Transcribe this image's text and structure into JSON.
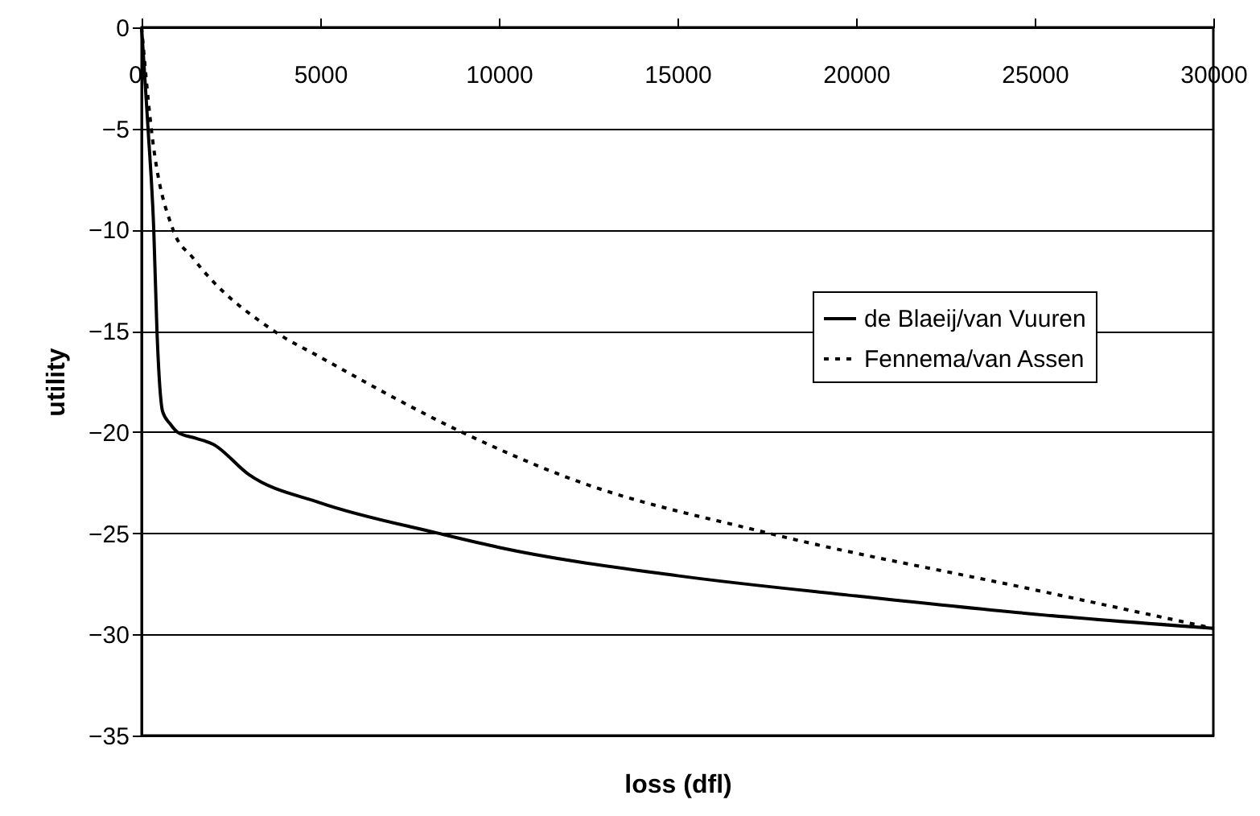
{
  "chart_data": {
    "type": "line",
    "xlabel": "loss (dfl)",
    "ylabel": "utility",
    "xlim": [
      0,
      30000
    ],
    "xticks": [
      0,
      5000,
      10000,
      15000,
      20000,
      25000,
      30000
    ],
    "ylim": [
      -35,
      0
    ],
    "yticks": [
      -35,
      -30,
      -25,
      -20,
      -15,
      -10,
      -5,
      0
    ],
    "grid": "y",
    "legend": "right",
    "marker": "none",
    "series": [
      {
        "name": "de Blaeij/van Vuuren",
        "color": "#000000",
        "line_style": "solid",
        "x": [
          0,
          180,
          340,
          430,
          590,
          800,
          1000,
          1500,
          2000,
          3000,
          5000,
          8300,
          10000,
          15000,
          20000,
          25000,
          30000
        ],
        "values": [
          0,
          -5,
          -10,
          -15,
          -19,
          -19.6,
          -20,
          -20.3,
          -20.6,
          -22.1,
          -23.5,
          -25,
          -25.7,
          -27.1,
          -28.1,
          -29,
          -29.7
        ]
      },
      {
        "name": "Fennema/van Assen",
        "color": "#000000",
        "line_style": "dotted",
        "x": [
          0,
          270,
          880,
          1440,
          3700,
          5000,
          8960,
          12000,
          17550,
          25000,
          30000
        ],
        "values": [
          0,
          -5,
          -10,
          -11.4,
          -15,
          -16.3,
          -20,
          -22.3,
          -25,
          -27.8,
          -29.7
        ]
      }
    ]
  }
}
